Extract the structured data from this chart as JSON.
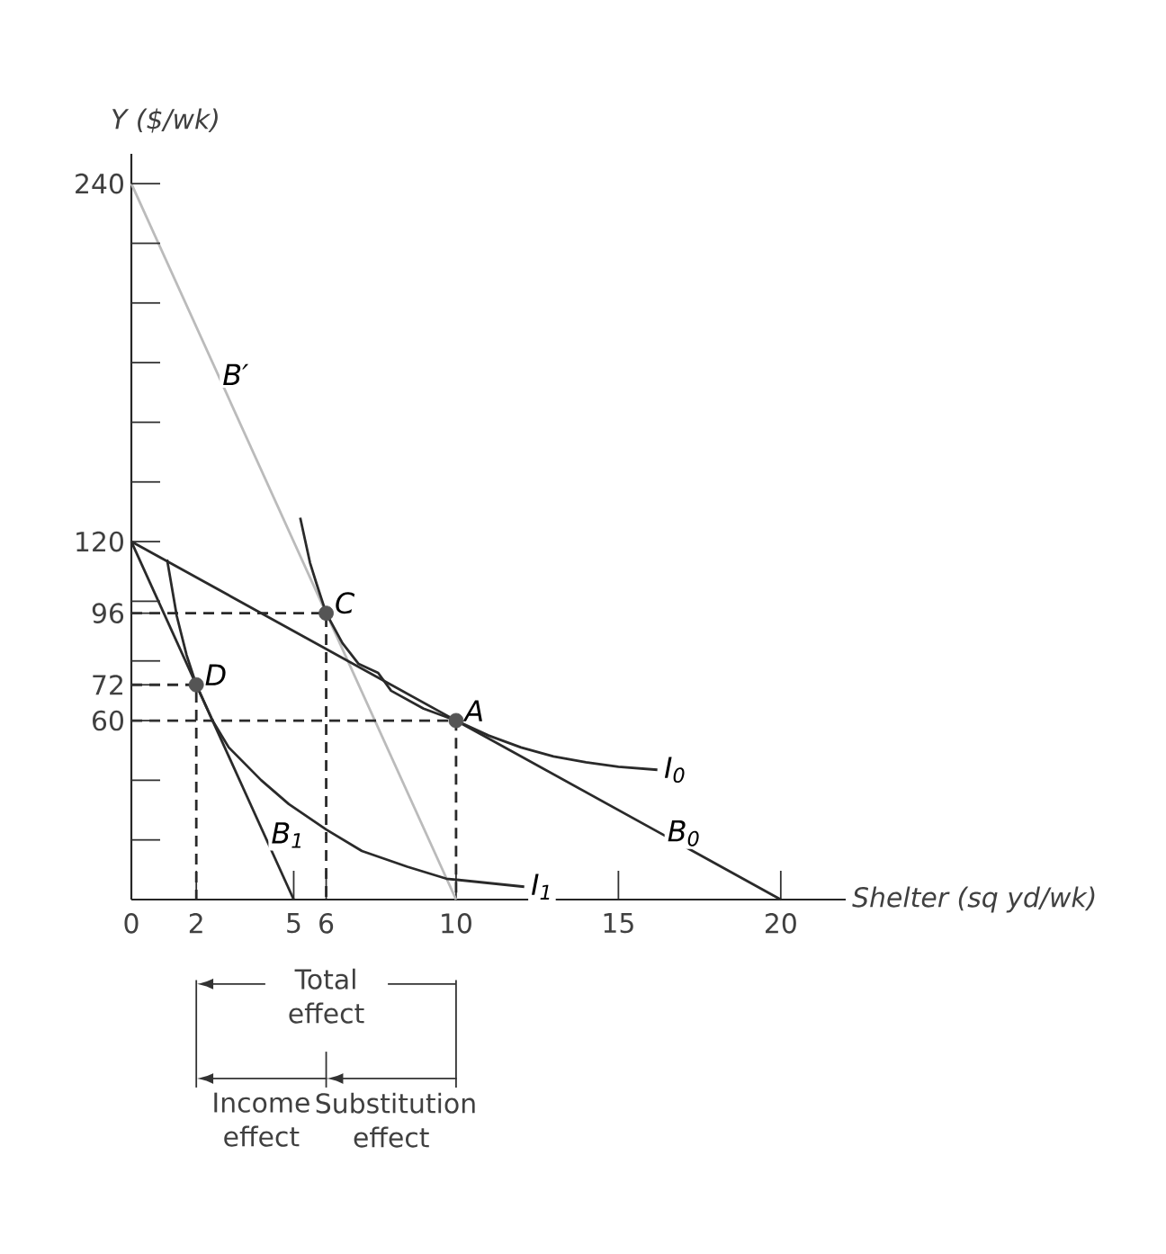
{
  "chart_data": {
    "type": "line",
    "xlabel": "Shelter (sq yd/wk)",
    "ylabel": "Y ($/wk)",
    "xlim": [
      0,
      22
    ],
    "ylim": [
      0,
      250
    ],
    "xticks": [
      0,
      2,
      5,
      6,
      10,
      15,
      20
    ],
    "yticks": [
      {
        "value": 20,
        "label": null
      },
      {
        "value": 40,
        "label": null
      },
      60,
      72,
      {
        "value": 80,
        "label": null
      },
      96,
      {
        "value": 100,
        "label": null
      },
      120,
      {
        "value": 140,
        "label": null
      },
      {
        "value": 160,
        "label": null
      },
      {
        "value": 180,
        "label": null
      },
      {
        "value": 200,
        "label": null
      },
      {
        "value": 220,
        "label": null
      },
      240
    ],
    "grid": false,
    "series": [
      {
        "color": "#bbbbbb",
        "x": [
          0,
          10
        ],
        "values": [
          240,
          0
        ]
      },
      {
        "color": "#2a2a2a",
        "x": [
          0,
          20
        ],
        "values": [
          120,
          0
        ]
      },
      {
        "color": "#2a2a2a",
        "x": [
          0,
          5
        ],
        "values": [
          120,
          0
        ]
      },
      {
        "color": "#2a2a2a",
        "x": [
          5.2,
          5.5,
          5.7,
          6,
          6.5,
          7,
          7.6,
          8,
          9,
          10,
          11,
          12,
          13,
          14,
          15,
          16.2
        ],
        "values": [
          128,
          113,
          106,
          96,
          86,
          79,
          76,
          70,
          64,
          60,
          55,
          51,
          48,
          46,
          44.5,
          43.5
        ]
      },
      {
        "color": "#2a2a2a",
        "x": [
          1.1,
          1.4,
          1.7,
          2,
          2.5,
          3,
          4,
          4.85,
          6,
          7.1,
          8.5,
          9.7,
          12.1
        ],
        "values": [
          114,
          95,
          82,
          72,
          60,
          51,
          40,
          32,
          23.5,
          16.3,
          11,
          7,
          4.3
        ]
      },
      {
        "color": "#2a2a2a",
        "line_style": "dashed",
        "x": [
          0,
          6,
          6
        ],
        "values": [
          96,
          96,
          0
        ]
      },
      {
        "color": "#2a2a2a",
        "line_style": "dashed",
        "x": [
          0,
          10,
          10
        ],
        "values": [
          60,
          60,
          0
        ]
      },
      {
        "color": "#2a2a2a",
        "line_style": "dashed",
        "x": [
          0,
          2,
          2
        ],
        "values": [
          72,
          72,
          0
        ]
      },
      {
        "type": "scatter",
        "color": "#555555",
        "marker": "circle",
        "x": [
          6,
          10,
          2
        ],
        "values": [
          96,
          60,
          72
        ]
      }
    ],
    "annotations": [
      {
        "text": "B′",
        "x": 2.6,
        "y": 176
      },
      {
        "text": "C",
        "x": 6,
        "y": 96
      },
      {
        "text": "A",
        "x": 10,
        "y": 60
      },
      {
        "text": "D",
        "x": 2,
        "y": 72
      },
      {
        "text": "I$_{0}$",
        "x": 16.2,
        "y": 43.5
      },
      {
        "text": "B$_{0}$",
        "x": 16.3,
        "y": 22.2
      },
      {
        "text": "B$_{1}$",
        "x": 4.1,
        "y": 21.6
      },
      {
        "text": "I$_{1}$",
        "x": 12.1,
        "y": 4.3
      },
      "Total effect",
      "Income effect",
      "Substitution effect"
    ]
  }
}
